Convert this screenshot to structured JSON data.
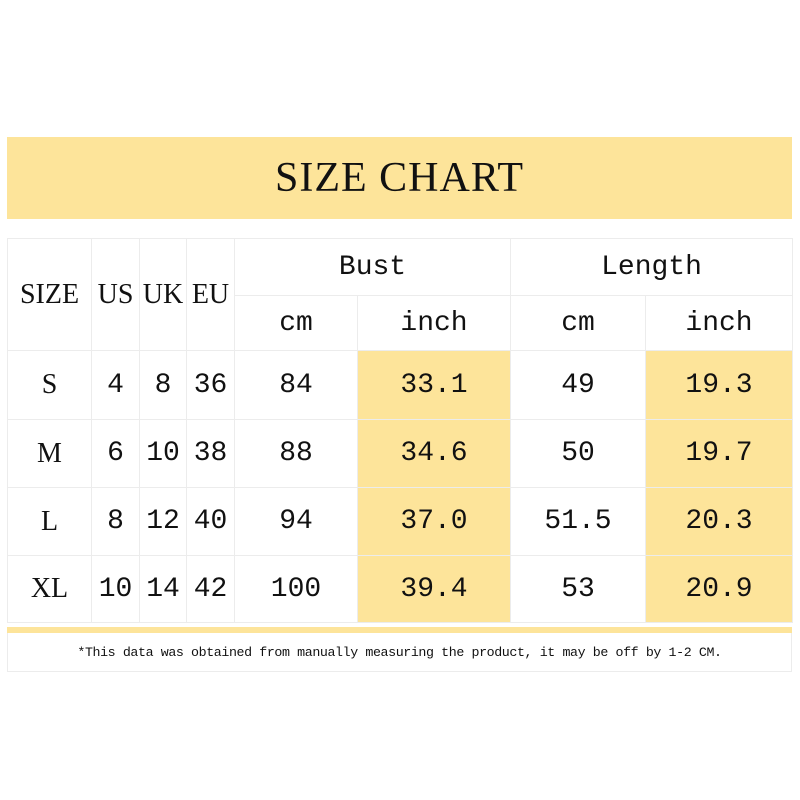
{
  "title": "SIZE CHART",
  "headers": {
    "size": "SIZE",
    "us": "US",
    "uk": "UK",
    "eu": "EU",
    "bust": "Bust",
    "length": "Length",
    "cm": "cm",
    "inch": "inch"
  },
  "rows": [
    {
      "size": "S",
      "us": "4",
      "uk": "8",
      "eu": "36",
      "bust_cm": "84",
      "bust_inch": "33.1",
      "length_cm": "49",
      "length_inch": "19.3"
    },
    {
      "size": "M",
      "us": "6",
      "uk": "10",
      "eu": "38",
      "bust_cm": "88",
      "bust_inch": "34.6",
      "length_cm": "50",
      "length_inch": "19.7"
    },
    {
      "size": "L",
      "us": "8",
      "uk": "12",
      "eu": "40",
      "bust_cm": "94",
      "bust_inch": "37.0",
      "length_cm": "51.5",
      "length_inch": "20.3"
    },
    {
      "size": "XL",
      "us": "10",
      "uk": "14",
      "eu": "42",
      "bust_cm": "100",
      "bust_inch": "39.4",
      "length_cm": "53",
      "length_inch": "20.9"
    }
  ],
  "note": "*This data was obtained from manually measuring the product, it may be off by 1-2 CM.",
  "colors": {
    "highlight": "#fde49a"
  }
}
